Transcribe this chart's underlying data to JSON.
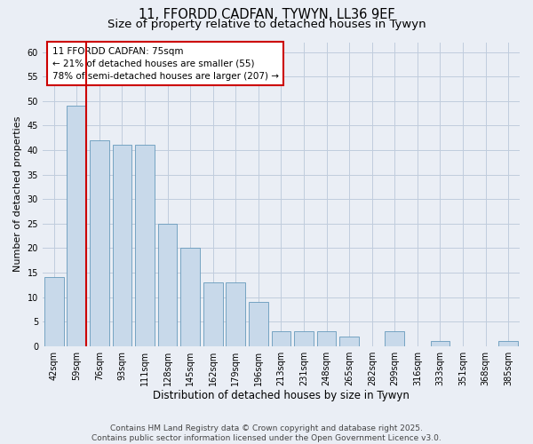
{
  "title": "11, FFORDD CADFAN, TYWYN, LL36 9EF",
  "subtitle": "Size of property relative to detached houses in Tywyn",
  "xlabel": "Distribution of detached houses by size in Tywyn",
  "ylabel": "Number of detached properties",
  "categories": [
    "42sqm",
    "59sqm",
    "76sqm",
    "93sqm",
    "111sqm",
    "128sqm",
    "145sqm",
    "162sqm",
    "179sqm",
    "196sqm",
    "213sqm",
    "231sqm",
    "248sqm",
    "265sqm",
    "282sqm",
    "299sqm",
    "316sqm",
    "333sqm",
    "351sqm",
    "368sqm",
    "385sqm"
  ],
  "values": [
    14,
    49,
    42,
    41,
    41,
    25,
    20,
    13,
    13,
    9,
    3,
    3,
    3,
    2,
    0,
    3,
    0,
    1,
    0,
    0,
    1
  ],
  "bar_color": "#c8d9ea",
  "bar_edgecolor": "#6699bb",
  "vline_color": "#cc0000",
  "annotation_text": "11 FFORDD CADFAN: 75sqm\n← 21% of detached houses are smaller (55)\n78% of semi-detached houses are larger (207) →",
  "annotation_box_edgecolor": "#cc0000",
  "ylim": [
    0,
    62
  ],
  "yticks": [
    0,
    5,
    10,
    15,
    20,
    25,
    30,
    35,
    40,
    45,
    50,
    55,
    60
  ],
  "grid_color": "#c0ccdd",
  "background_color": "#eaeef5",
  "plot_bg_color": "#eaeef5",
  "footer_text": "Contains HM Land Registry data © Crown copyright and database right 2025.\nContains public sector information licensed under the Open Government Licence v3.0.",
  "title_fontsize": 10.5,
  "subtitle_fontsize": 9.5,
  "xlabel_fontsize": 8.5,
  "ylabel_fontsize": 8,
  "tick_fontsize": 7,
  "annotation_fontsize": 7.5,
  "footer_fontsize": 6.5
}
